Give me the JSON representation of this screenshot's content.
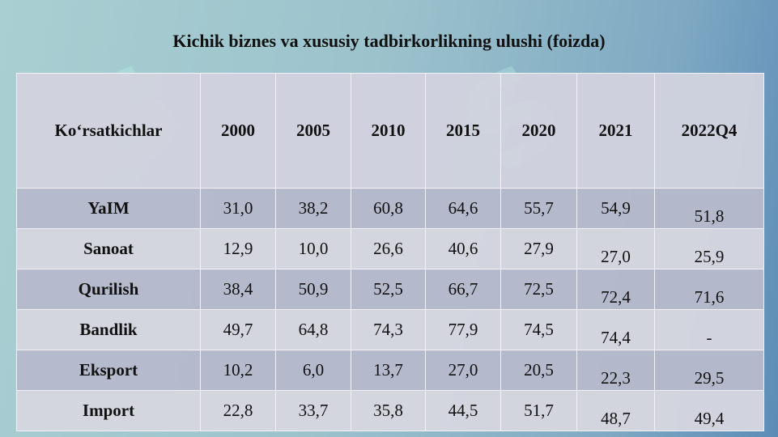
{
  "title": "Kichik biznes va xususiy tadbirkorlikning ulushi (foizda)",
  "table": {
    "header": [
      "Ko‘rsatkichlar",
      "2000",
      "2005",
      "2010",
      "2015",
      "2020",
      "2021",
      "2022Q4"
    ],
    "rows": [
      [
        "YaIM",
        "31,0",
        "38,2",
        "60,8",
        "64,6",
        "55,7",
        "54,9",
        "51,8"
      ],
      [
        "Sanoat",
        "12,9",
        "10,0",
        "26,6",
        "40,6",
        "27,9",
        "27,0",
        "25,9"
      ],
      [
        "Qurilish",
        "38,4",
        "50,9",
        "52,5",
        "66,7",
        "72,5",
        "72,4",
        "71,6"
      ],
      [
        "Bandlik",
        "49,7",
        "64,8",
        "74,3",
        "77,9",
        "74,5",
        "74,4",
        "-"
      ],
      [
        "Eksport",
        "10,2",
        "6,0",
        "13,7",
        "27,0",
        "20,5",
        "22,3",
        "29,5"
      ],
      [
        "Import",
        "22,8",
        "33,7",
        "35,8",
        "44,5",
        "51,7",
        "48,7",
        "49,4"
      ]
    ]
  }
}
